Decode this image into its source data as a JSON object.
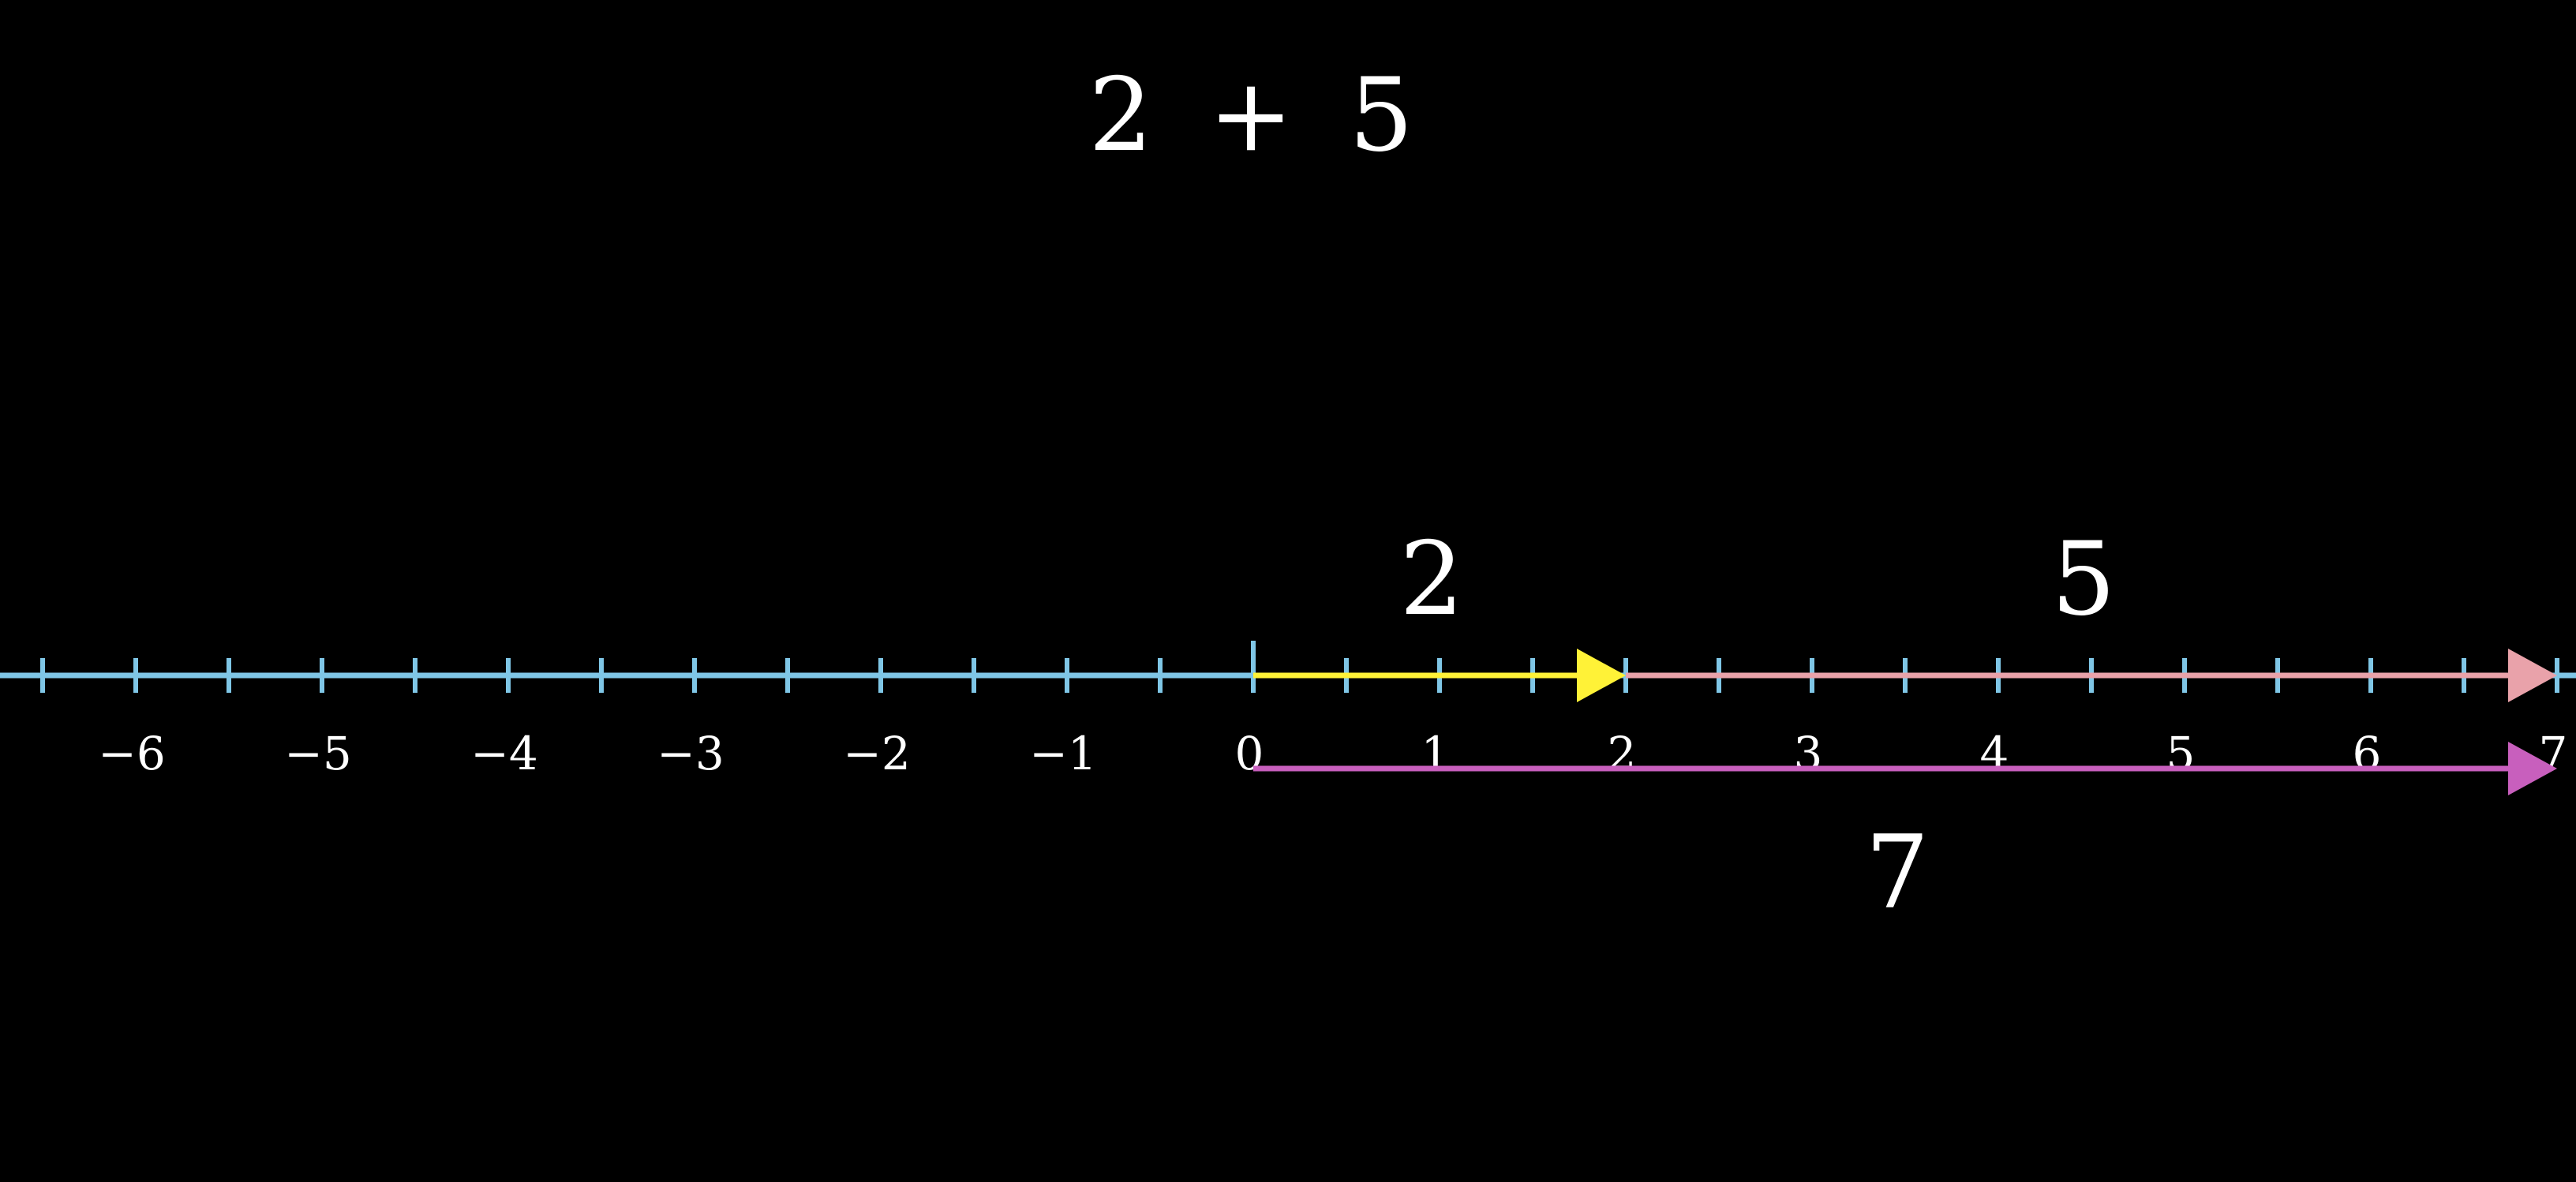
{
  "expression": {
    "left": "2",
    "op": "+",
    "right": "5"
  },
  "number_line": {
    "range": [
      -7,
      7
    ],
    "minor_step": 0.5,
    "tick_labels": [
      "−6",
      "−5",
      "−4",
      "−3",
      "−2",
      "−1",
      "0",
      "1",
      "2",
      "3",
      "4",
      "5",
      "6",
      "7"
    ],
    "tick_values": [
      -6,
      -5,
      -4,
      -3,
      -2,
      -1,
      0,
      1,
      2,
      3,
      4,
      5,
      6,
      7
    ],
    "color": "#7fc6e6"
  },
  "vectors": [
    {
      "id": "first",
      "label": "2",
      "from": 0,
      "to": 2,
      "color": "#fff237",
      "position": "above"
    },
    {
      "id": "second",
      "label": "5",
      "from": 2,
      "to": 7,
      "color": "#e9a2aa",
      "position": "above"
    },
    {
      "id": "sum",
      "label": "7",
      "from": 0,
      "to": 7,
      "color": "#c85fbd",
      "position": "below"
    }
  ]
}
